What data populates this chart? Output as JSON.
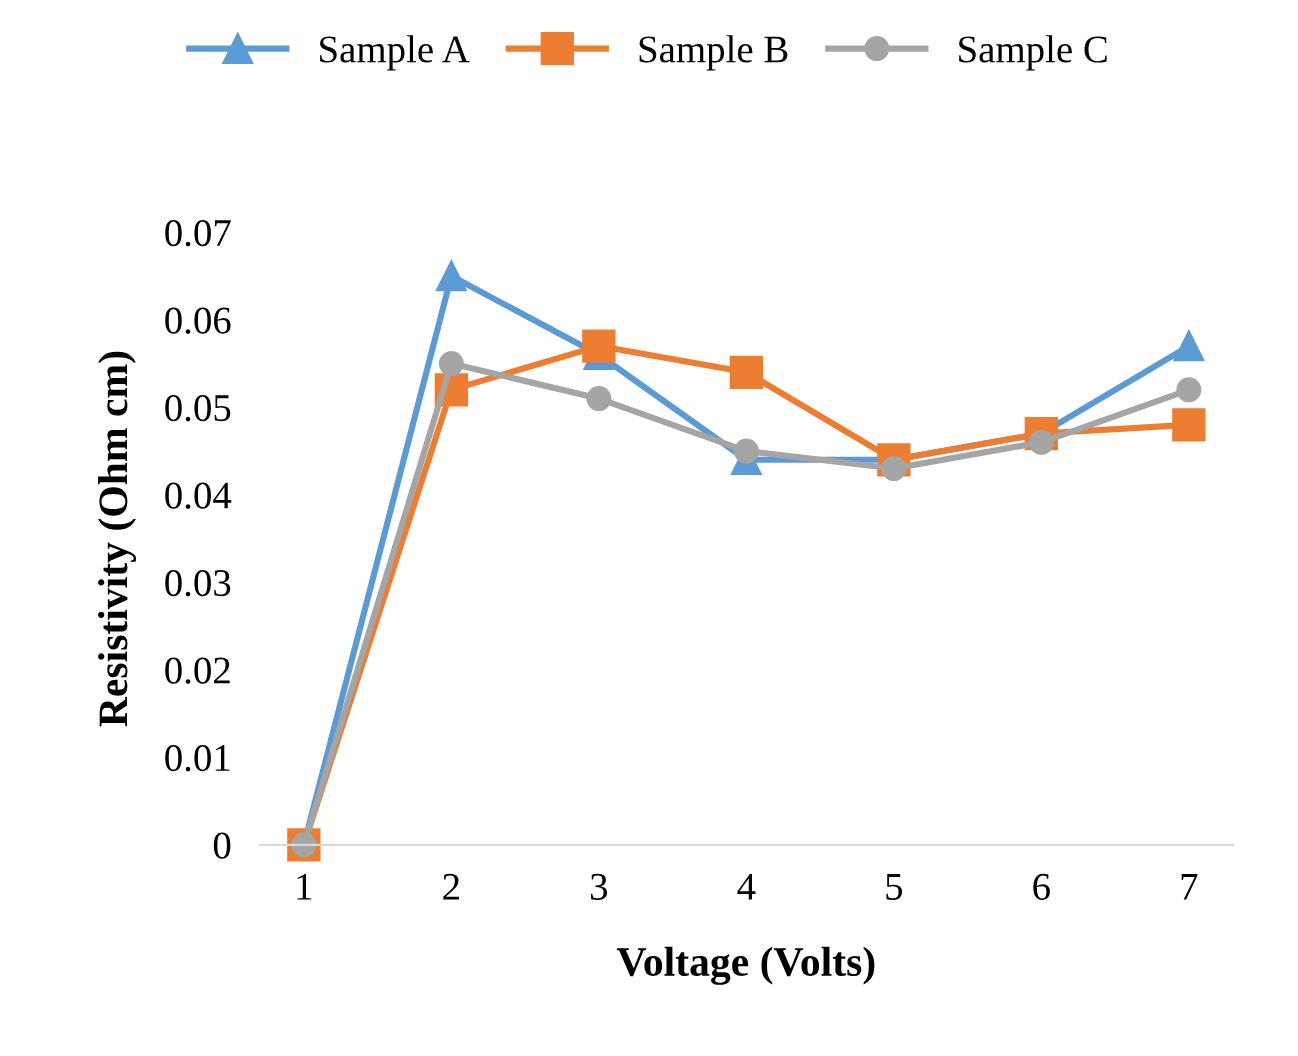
{
  "chart_data": {
    "type": "line",
    "xlabel": "Voltage (Volts)",
    "ylabel": "Resistivity (Ohm cm)",
    "categories": [
      "1",
      "2",
      "3",
      "4",
      "5",
      "6",
      "7"
    ],
    "series": [
      {
        "name": "Sample A",
        "color": "#5b9bd5",
        "marker": "triangle",
        "values": [
          0,
          0.065,
          0.056,
          0.044,
          0.044,
          0.047,
          0.057
        ]
      },
      {
        "name": "Sample B",
        "color": "#ed7d31",
        "marker": "square",
        "values": [
          0,
          0.052,
          0.057,
          0.054,
          0.044,
          0.047,
          0.048
        ]
      },
      {
        "name": "Sample C",
        "color": "#a5a5a5",
        "marker": "circle",
        "values": [
          0,
          0.055,
          0.051,
          0.045,
          0.043,
          0.046,
          0.052
        ]
      }
    ],
    "ylim": [
      0,
      0.07
    ],
    "yticks": [
      0,
      0.01,
      0.02,
      0.03,
      0.04,
      0.05,
      0.06,
      0.07
    ],
    "grid": false,
    "legend": "top",
    "line_style": "solid"
  }
}
